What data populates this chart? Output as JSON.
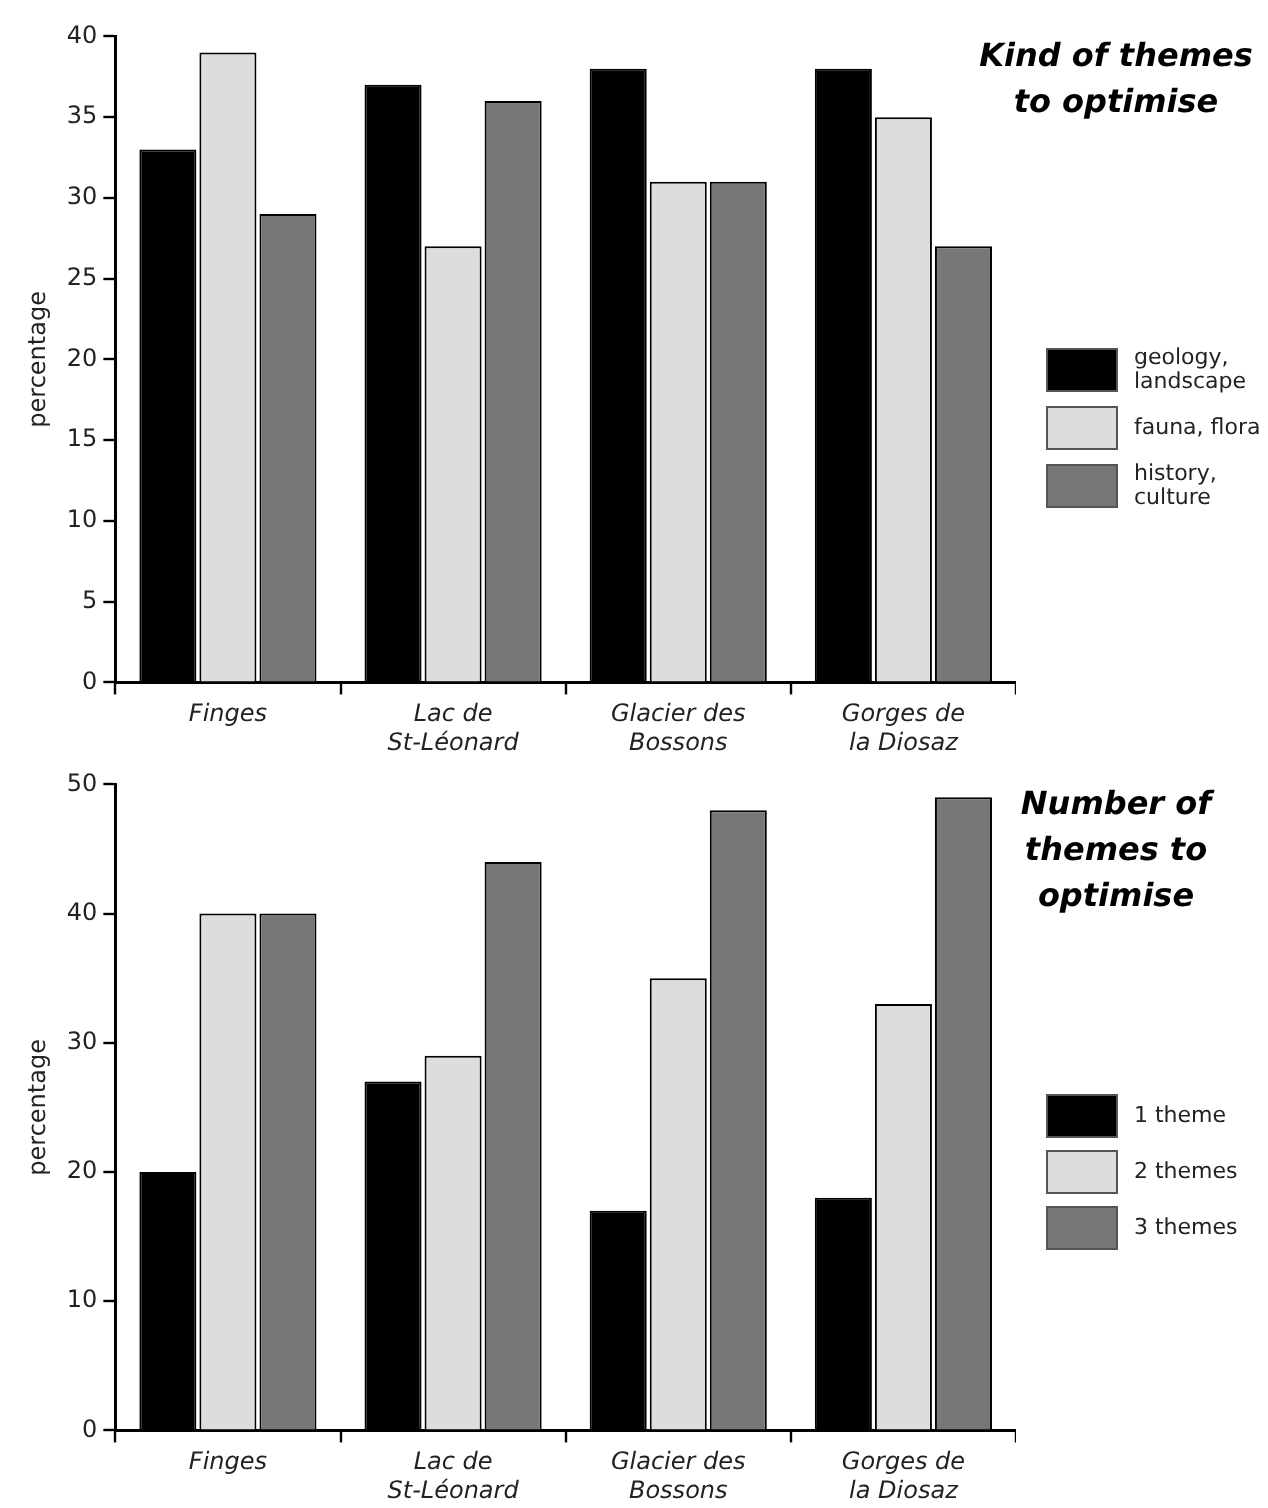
{
  "chart_data": [
    {
      "type": "bar",
      "title": "Kind of themes to optimise",
      "ylabel": "percentage",
      "categories": [
        "Finges",
        "Lac de St-Léonard",
        "Glacier des Bossons",
        "Gorges de la Diosaz"
      ],
      "series": [
        {
          "name": "geology, landscape",
          "color": "#000000",
          "values": [
            33,
            37,
            38,
            38
          ]
        },
        {
          "name": "fauna, flora",
          "color": "#dddddd",
          "values": [
            39,
            27,
            31,
            35
          ]
        },
        {
          "name": "history, culture",
          "color": "#777777",
          "values": [
            29,
            36,
            31,
            27
          ]
        }
      ],
      "ylim": [
        0,
        40
      ],
      "yticks": [
        0,
        5,
        10,
        15,
        20,
        25,
        30,
        35,
        40
      ],
      "grid": false,
      "legend": "right"
    },
    {
      "type": "bar",
      "title": "Number of themes to optimise",
      "ylabel": "percentage",
      "categories": [
        "Finges",
        "Lac de St-Léonard",
        "Glacier des Bossons",
        "Gorges de la Diosaz"
      ],
      "series": [
        {
          "name": "1 theme",
          "color": "#000000",
          "values": [
            20,
            27,
            17,
            18
          ]
        },
        {
          "name": "2 themes",
          "color": "#dddddd",
          "values": [
            40,
            29,
            35,
            33
          ]
        },
        {
          "name": "3 themes",
          "color": "#777777",
          "values": [
            40,
            44,
            48,
            49
          ]
        }
      ],
      "ylim": [
        0,
        50
      ],
      "yticks": [
        0,
        10,
        20,
        30,
        40,
        50
      ],
      "grid": false,
      "legend": "right"
    }
  ]
}
